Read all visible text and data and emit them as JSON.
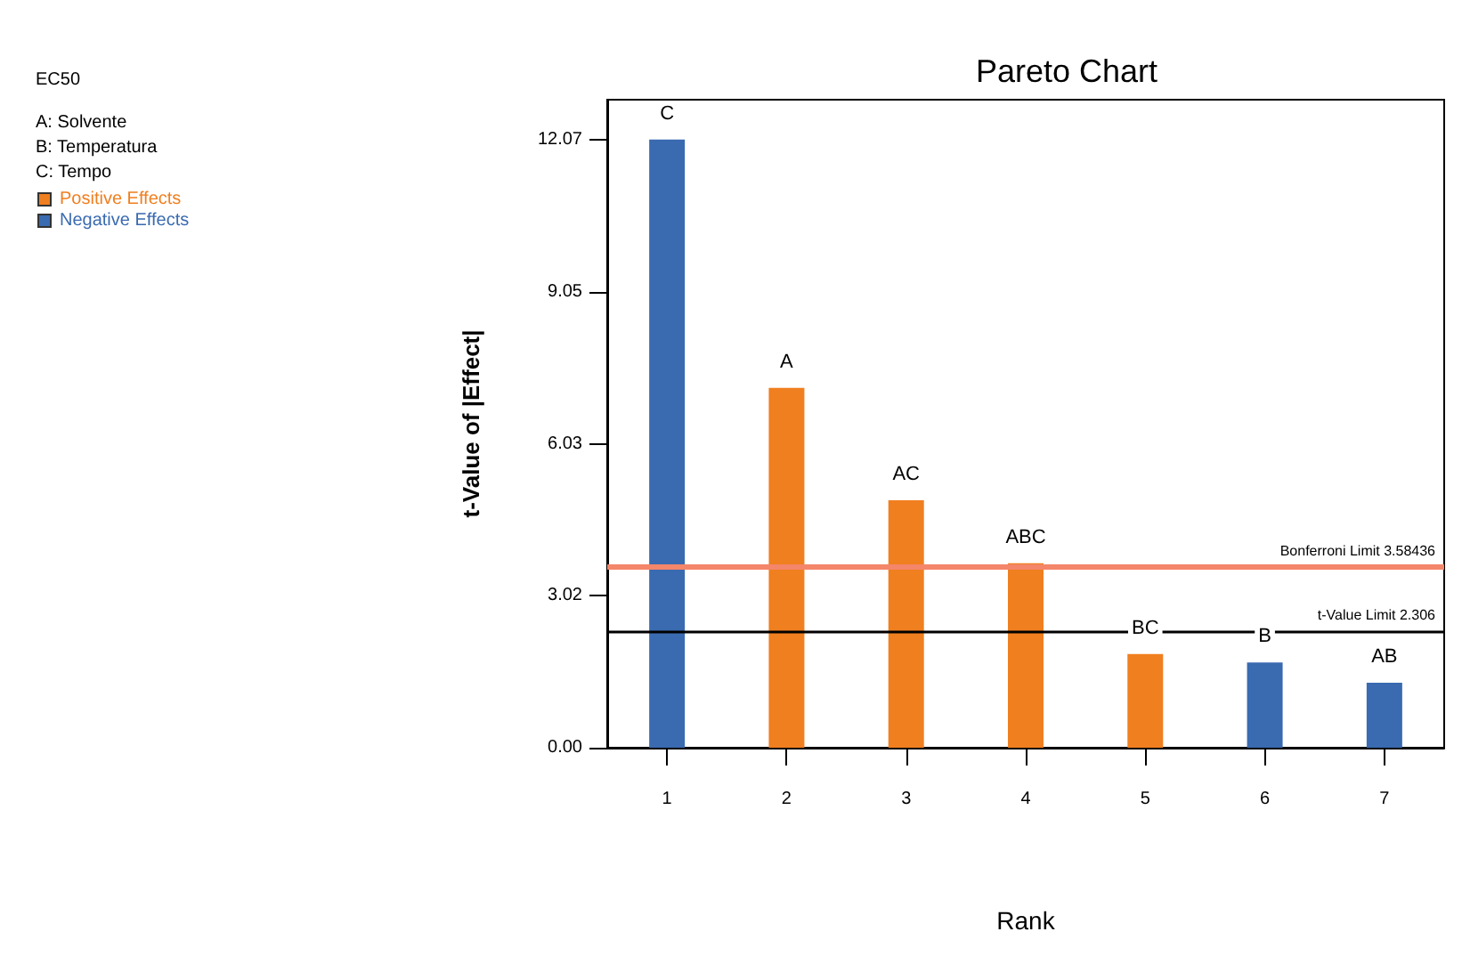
{
  "chart_data": {
    "type": "bar",
    "title": "Pareto Chart",
    "xlabel": "Rank",
    "ylabel": "t-Value of |Effect|",
    "categories": [
      "1",
      "2",
      "3",
      "4",
      "5",
      "6",
      "7"
    ],
    "series": [
      {
        "name": "Positive Effects",
        "color": "#f07f1f",
        "values": [
          null,
          7.14,
          4.91,
          3.66,
          1.86,
          null,
          null
        ]
      },
      {
        "name": "Negative Effects",
        "color": "#3a6ab0",
        "values": [
          12.07,
          null,
          null,
          null,
          null,
          1.69,
          1.29
        ]
      }
    ],
    "ylim": [
      0,
      12.86
    ],
    "yticks": [
      {
        "value": 0,
        "label": "0.00"
      },
      3.02,
      6.03,
      9.05,
      12.07
    ],
    "grid": false,
    "legend": "top left",
    "ref_lines": [
      {
        "axis": "y",
        "value": 3.58436,
        "label": "Bonferroni Limit 3.58436",
        "color": "#f4866a"
      },
      {
        "axis": "y",
        "value": 2.306,
        "label": "t-Value Limit 2.306",
        "color": "#000000"
      }
    ],
    "annotations": [
      "EC50",
      "A: Solvente",
      "B: Temperatura",
      "C: Tempo",
      {
        "text": "C",
        "x": "1",
        "y": 12.07
      },
      {
        "text": "A",
        "x": "2",
        "y": 7.14
      },
      {
        "text": "AC",
        "x": "3",
        "y": 4.91
      },
      {
        "text": "ABC",
        "x": "4",
        "y": 3.66
      },
      {
        "text": "BC",
        "x": "5",
        "y": 1.86
      },
      {
        "text": "B",
        "x": "6",
        "y": 1.69
      },
      {
        "text": "AB",
        "x": "7",
        "y": 1.29
      }
    ]
  }
}
